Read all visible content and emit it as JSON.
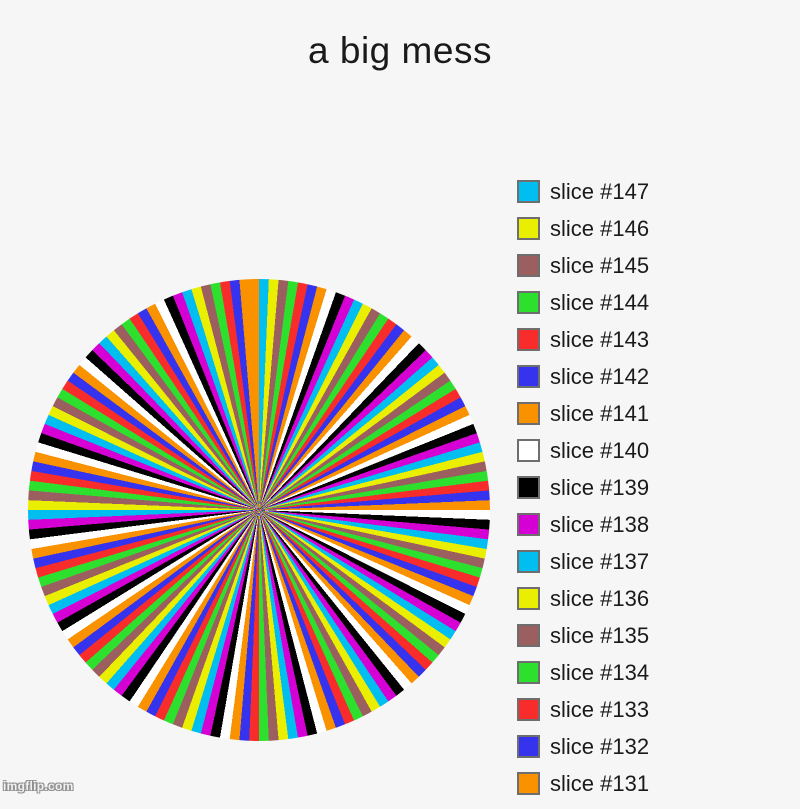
{
  "title": "a big mess",
  "watermark": "imgflip.com",
  "colors": {
    "background": "#F6F6F6",
    "text": "#1A1A1A",
    "swatch_border": "#6E6E6E"
  },
  "chart_data": {
    "type": "pie",
    "title": "a big mess",
    "slice_count": 147,
    "label_prefix": "slice #",
    "equal_values": true,
    "value_per_slice": 1,
    "slice_1_weight": 2,
    "start_angle_deg": 0,
    "direction": "counterclockwise",
    "palette_cycle": [
      "#FA9200",
      "#3533EE",
      "#F92C2C",
      "#2EE02E",
      "#9C5F5F",
      "#EAEE00",
      "#00BFF0",
      "#D400D4",
      "#000000",
      "#FFFFFF"
    ],
    "legend_position": "right",
    "legend_visible_range": [
      147,
      131
    ]
  },
  "legend": {
    "items": [
      {
        "label": "slice #147",
        "color": "#00BFF0"
      },
      {
        "label": "slice #146",
        "color": "#EAEE00"
      },
      {
        "label": "slice #145",
        "color": "#9C5F5F"
      },
      {
        "label": "slice #144",
        "color": "#2EE02E"
      },
      {
        "label": "slice #143",
        "color": "#F92C2C"
      },
      {
        "label": "slice #142",
        "color": "#3533EE"
      },
      {
        "label": "slice #141",
        "color": "#FA9200"
      },
      {
        "label": "slice #140",
        "color": "#FFFFFF"
      },
      {
        "label": "slice #139",
        "color": "#000000"
      },
      {
        "label": "slice #138",
        "color": "#D400D4"
      },
      {
        "label": "slice #137",
        "color": "#00BFF0"
      },
      {
        "label": "slice #136",
        "color": "#EAEE00"
      },
      {
        "label": "slice #135",
        "color": "#9C5F5F"
      },
      {
        "label": "slice #134",
        "color": "#2EE02E"
      },
      {
        "label": "slice #133",
        "color": "#F92C2C"
      },
      {
        "label": "slice #132",
        "color": "#3533EE"
      },
      {
        "label": "slice #131",
        "color": "#FA9200"
      }
    ]
  }
}
